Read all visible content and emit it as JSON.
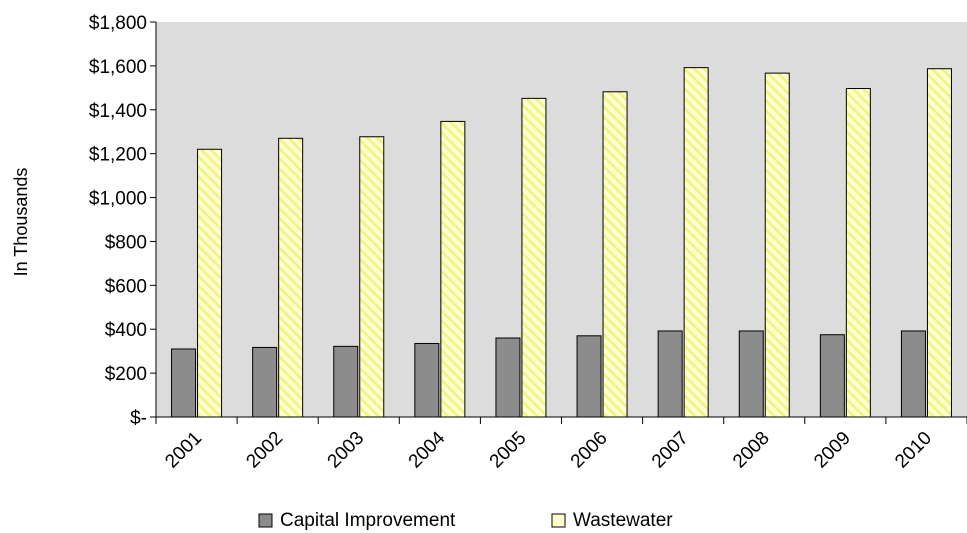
{
  "chart_data": {
    "type": "bar",
    "title": "",
    "xlabel": "",
    "ylabel": "In Thousands",
    "categories": [
      "2001",
      "2002",
      "2003",
      "2004",
      "2005",
      "2006",
      "2007",
      "2008",
      "2009",
      "2010"
    ],
    "series": [
      {
        "name": "Capital Improvement",
        "values": [
          310,
          317,
          322,
          335,
          360,
          370,
          392,
          392,
          375,
          392
        ],
        "color": "#8c8c8c",
        "pattern": "solid"
      },
      {
        "name": "Wastewater",
        "values": [
          1220,
          1270,
          1277,
          1347,
          1452,
          1482,
          1592,
          1567,
          1497,
          1587
        ],
        "color": "#ffffcc",
        "pattern": "diagonal-stripes"
      }
    ],
    "ylim": [
      0,
      1800
    ],
    "yticks": [
      0,
      200,
      400,
      600,
      800,
      1000,
      1200,
      1400,
      1600,
      1800
    ],
    "ytick_labels": [
      "$-",
      "$200",
      "$400",
      "$600",
      "$800",
      "$1,000",
      "$1,200",
      "$1,400",
      "$1,600",
      "$1,800"
    ],
    "grid": false,
    "plot_background": "#dcdcdc",
    "legend_position": "bottom"
  }
}
